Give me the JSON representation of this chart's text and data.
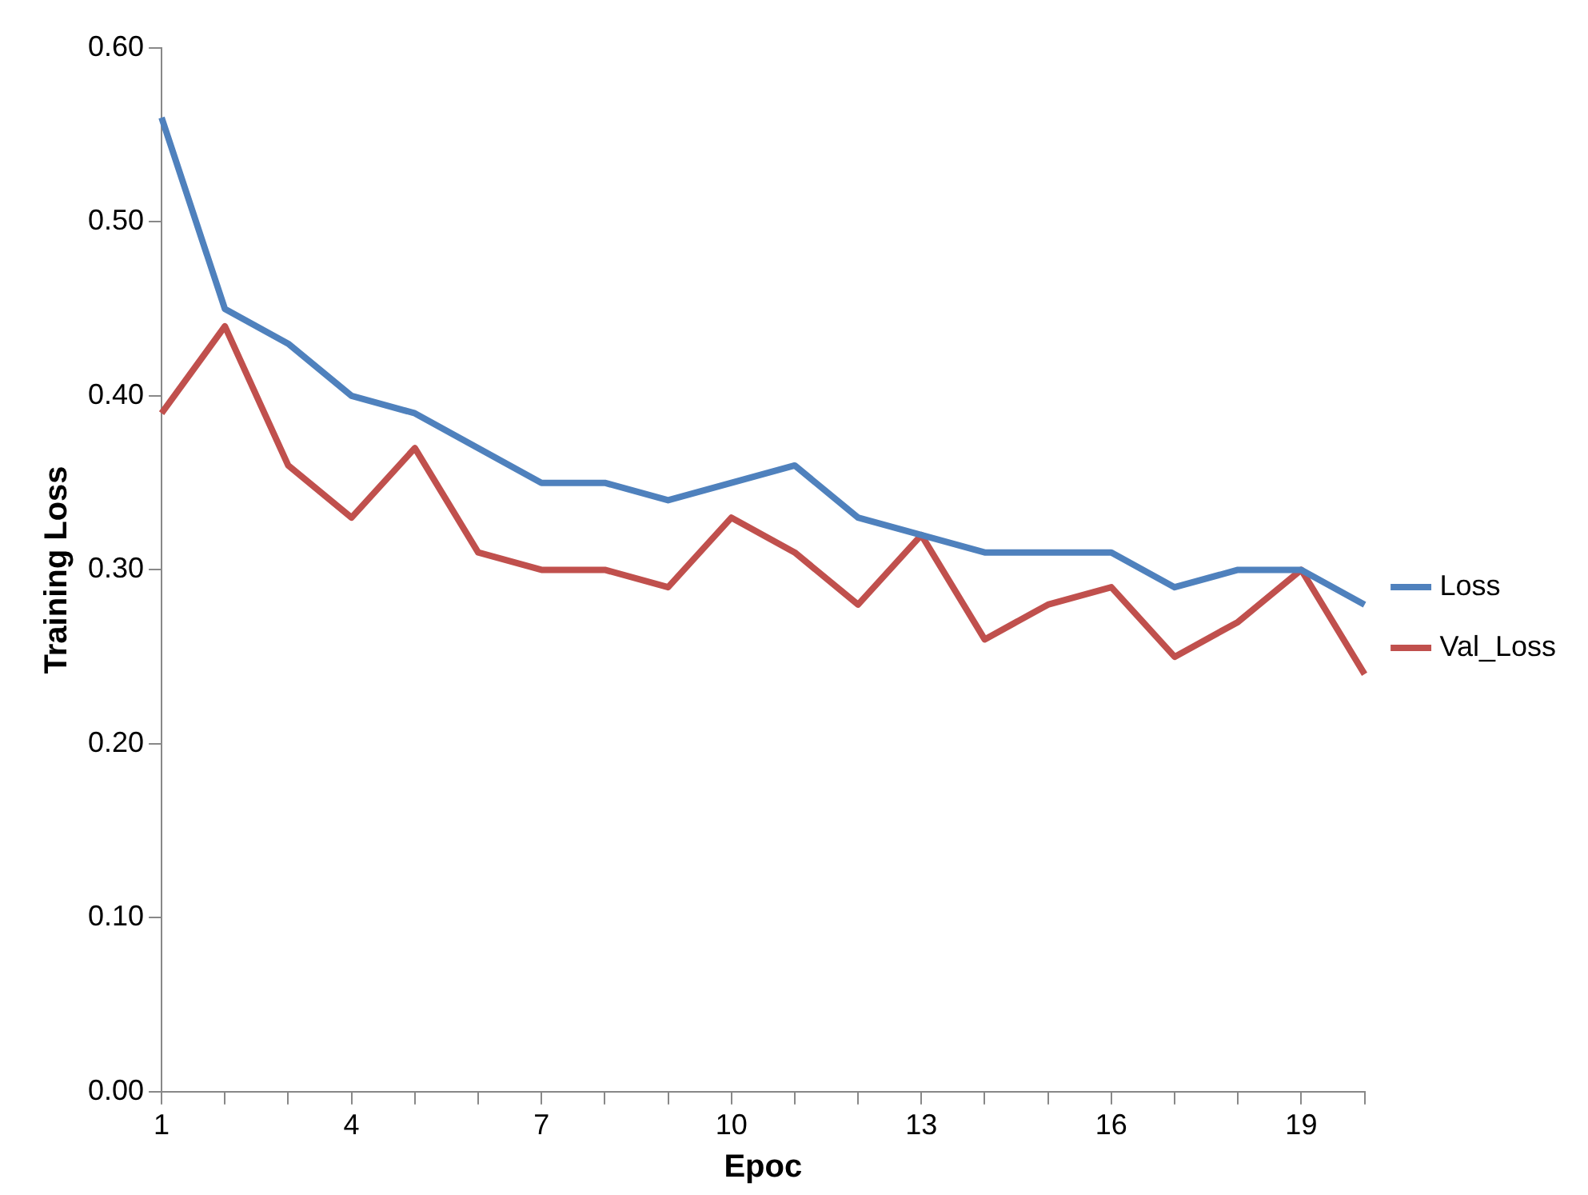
{
  "chart_data": {
    "type": "line",
    "xlabel": "Epoc",
    "ylabel": "Training Loss",
    "categories": [
      "1",
      null,
      null,
      "4",
      null,
      null,
      "7",
      null,
      null,
      "10",
      null,
      null,
      "13",
      null,
      null,
      "16",
      null,
      null,
      "19",
      null
    ],
    "series": [
      {
        "name": "Loss",
        "color": "#4f81bd",
        "values": [
          0.56,
          0.45,
          0.43,
          0.4,
          0.39,
          0.37,
          0.35,
          0.35,
          0.34,
          0.35,
          0.36,
          0.33,
          0.32,
          0.31,
          0.31,
          0.31,
          0.29,
          0.3,
          0.3,
          0.28
        ]
      },
      {
        "name": "Val_Loss",
        "color": "#c0504d",
        "values": [
          0.39,
          0.44,
          0.36,
          0.33,
          0.37,
          0.31,
          0.3,
          0.3,
          0.29,
          0.33,
          0.31,
          0.28,
          0.32,
          0.26,
          0.28,
          0.29,
          0.25,
          0.27,
          0.3,
          0.24
        ]
      }
    ],
    "ylim": [
      0,
      0.6
    ],
    "yticks": [
      {
        "value": 0,
        "label": "0.00"
      },
      {
        "value": 0.1,
        "label": "0.10"
      },
      {
        "value": 0.2,
        "label": "0.20"
      },
      {
        "value": 0.3,
        "label": "0.30"
      },
      {
        "value": 0.4,
        "label": "0.40"
      },
      {
        "value": 0.5,
        "label": "0.50"
      },
      {
        "value": 0.6,
        "label": "0.60"
      }
    ],
    "grid": false,
    "legend": "right",
    "marker": "none",
    "line_style": "solid"
  }
}
